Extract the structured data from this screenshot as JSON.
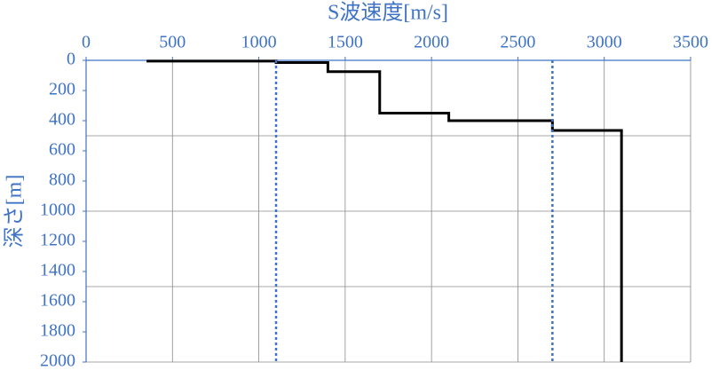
{
  "chart_data": {
    "type": "line",
    "xlabel": "S波速度[m/s]",
    "ylabel": "深さ[m]",
    "xlim": [
      0,
      3500
    ],
    "xticks": [
      0,
      500,
      1000,
      1500,
      2000,
      2500,
      3000,
      3500
    ],
    "ylim": [
      0,
      2000
    ],
    "yticks": [
      0,
      200,
      400,
      600,
      800,
      1000,
      1200,
      1400,
      1600,
      1800,
      2000
    ],
    "y_inverted": true,
    "x_axis_position": "top",
    "grid": true,
    "ygrid": [
      500,
      1000,
      1500,
      2000
    ],
    "axis_color": "#3f73c5",
    "series": [
      {
        "color": "#000000",
        "style": "solid",
        "x": [
          350,
          1100,
          1100,
          1400,
          1400,
          1700,
          1700,
          2100,
          2100,
          2700,
          2700,
          3100,
          3100
        ],
        "values": [
          5,
          5,
          15,
          15,
          75,
          75,
          350,
          350,
          400,
          400,
          465,
          465,
          2000
        ]
      },
      {
        "color": "#3f73c5",
        "style": "dotted",
        "x": [
          1100,
          1100
        ],
        "values": [
          0,
          2000
        ]
      },
      {
        "color": "#3f73c5",
        "style": "dotted",
        "x": [
          2700,
          2700
        ],
        "values": [
          0,
          2000
        ]
      }
    ]
  }
}
